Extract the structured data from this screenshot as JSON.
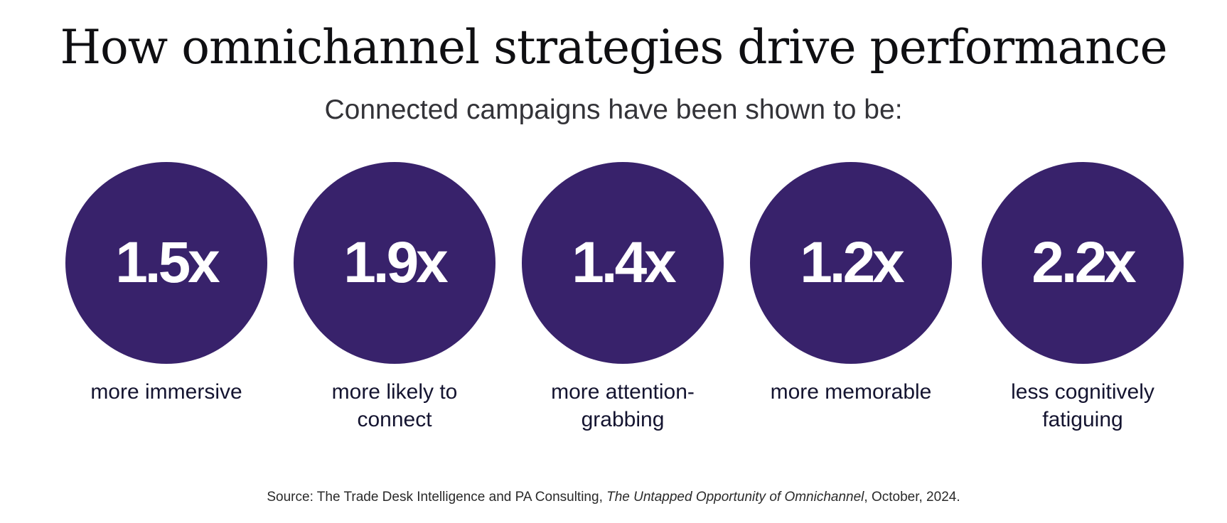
{
  "title": "How omnichannel strategies drive performance",
  "subtitle": "Connected campaigns have been shown to be:",
  "circle_color": "#38226b",
  "stats": [
    {
      "value": "1.5x",
      "label": "more immersive"
    },
    {
      "value": "1.9x",
      "label": "more likely to connect"
    },
    {
      "value": "1.4x",
      "label": "more attention-grabbing"
    },
    {
      "value": "1.2x",
      "label": "more memorable"
    },
    {
      "value": "2.2x",
      "label": "less cognitively fatiguing"
    }
  ],
  "source": {
    "prefix": "Source: The Trade Desk Intelligence and PA Consulting, ",
    "report": "The Untapped Opportunity of Omnichannel",
    "suffix": ", October, 2024."
  }
}
